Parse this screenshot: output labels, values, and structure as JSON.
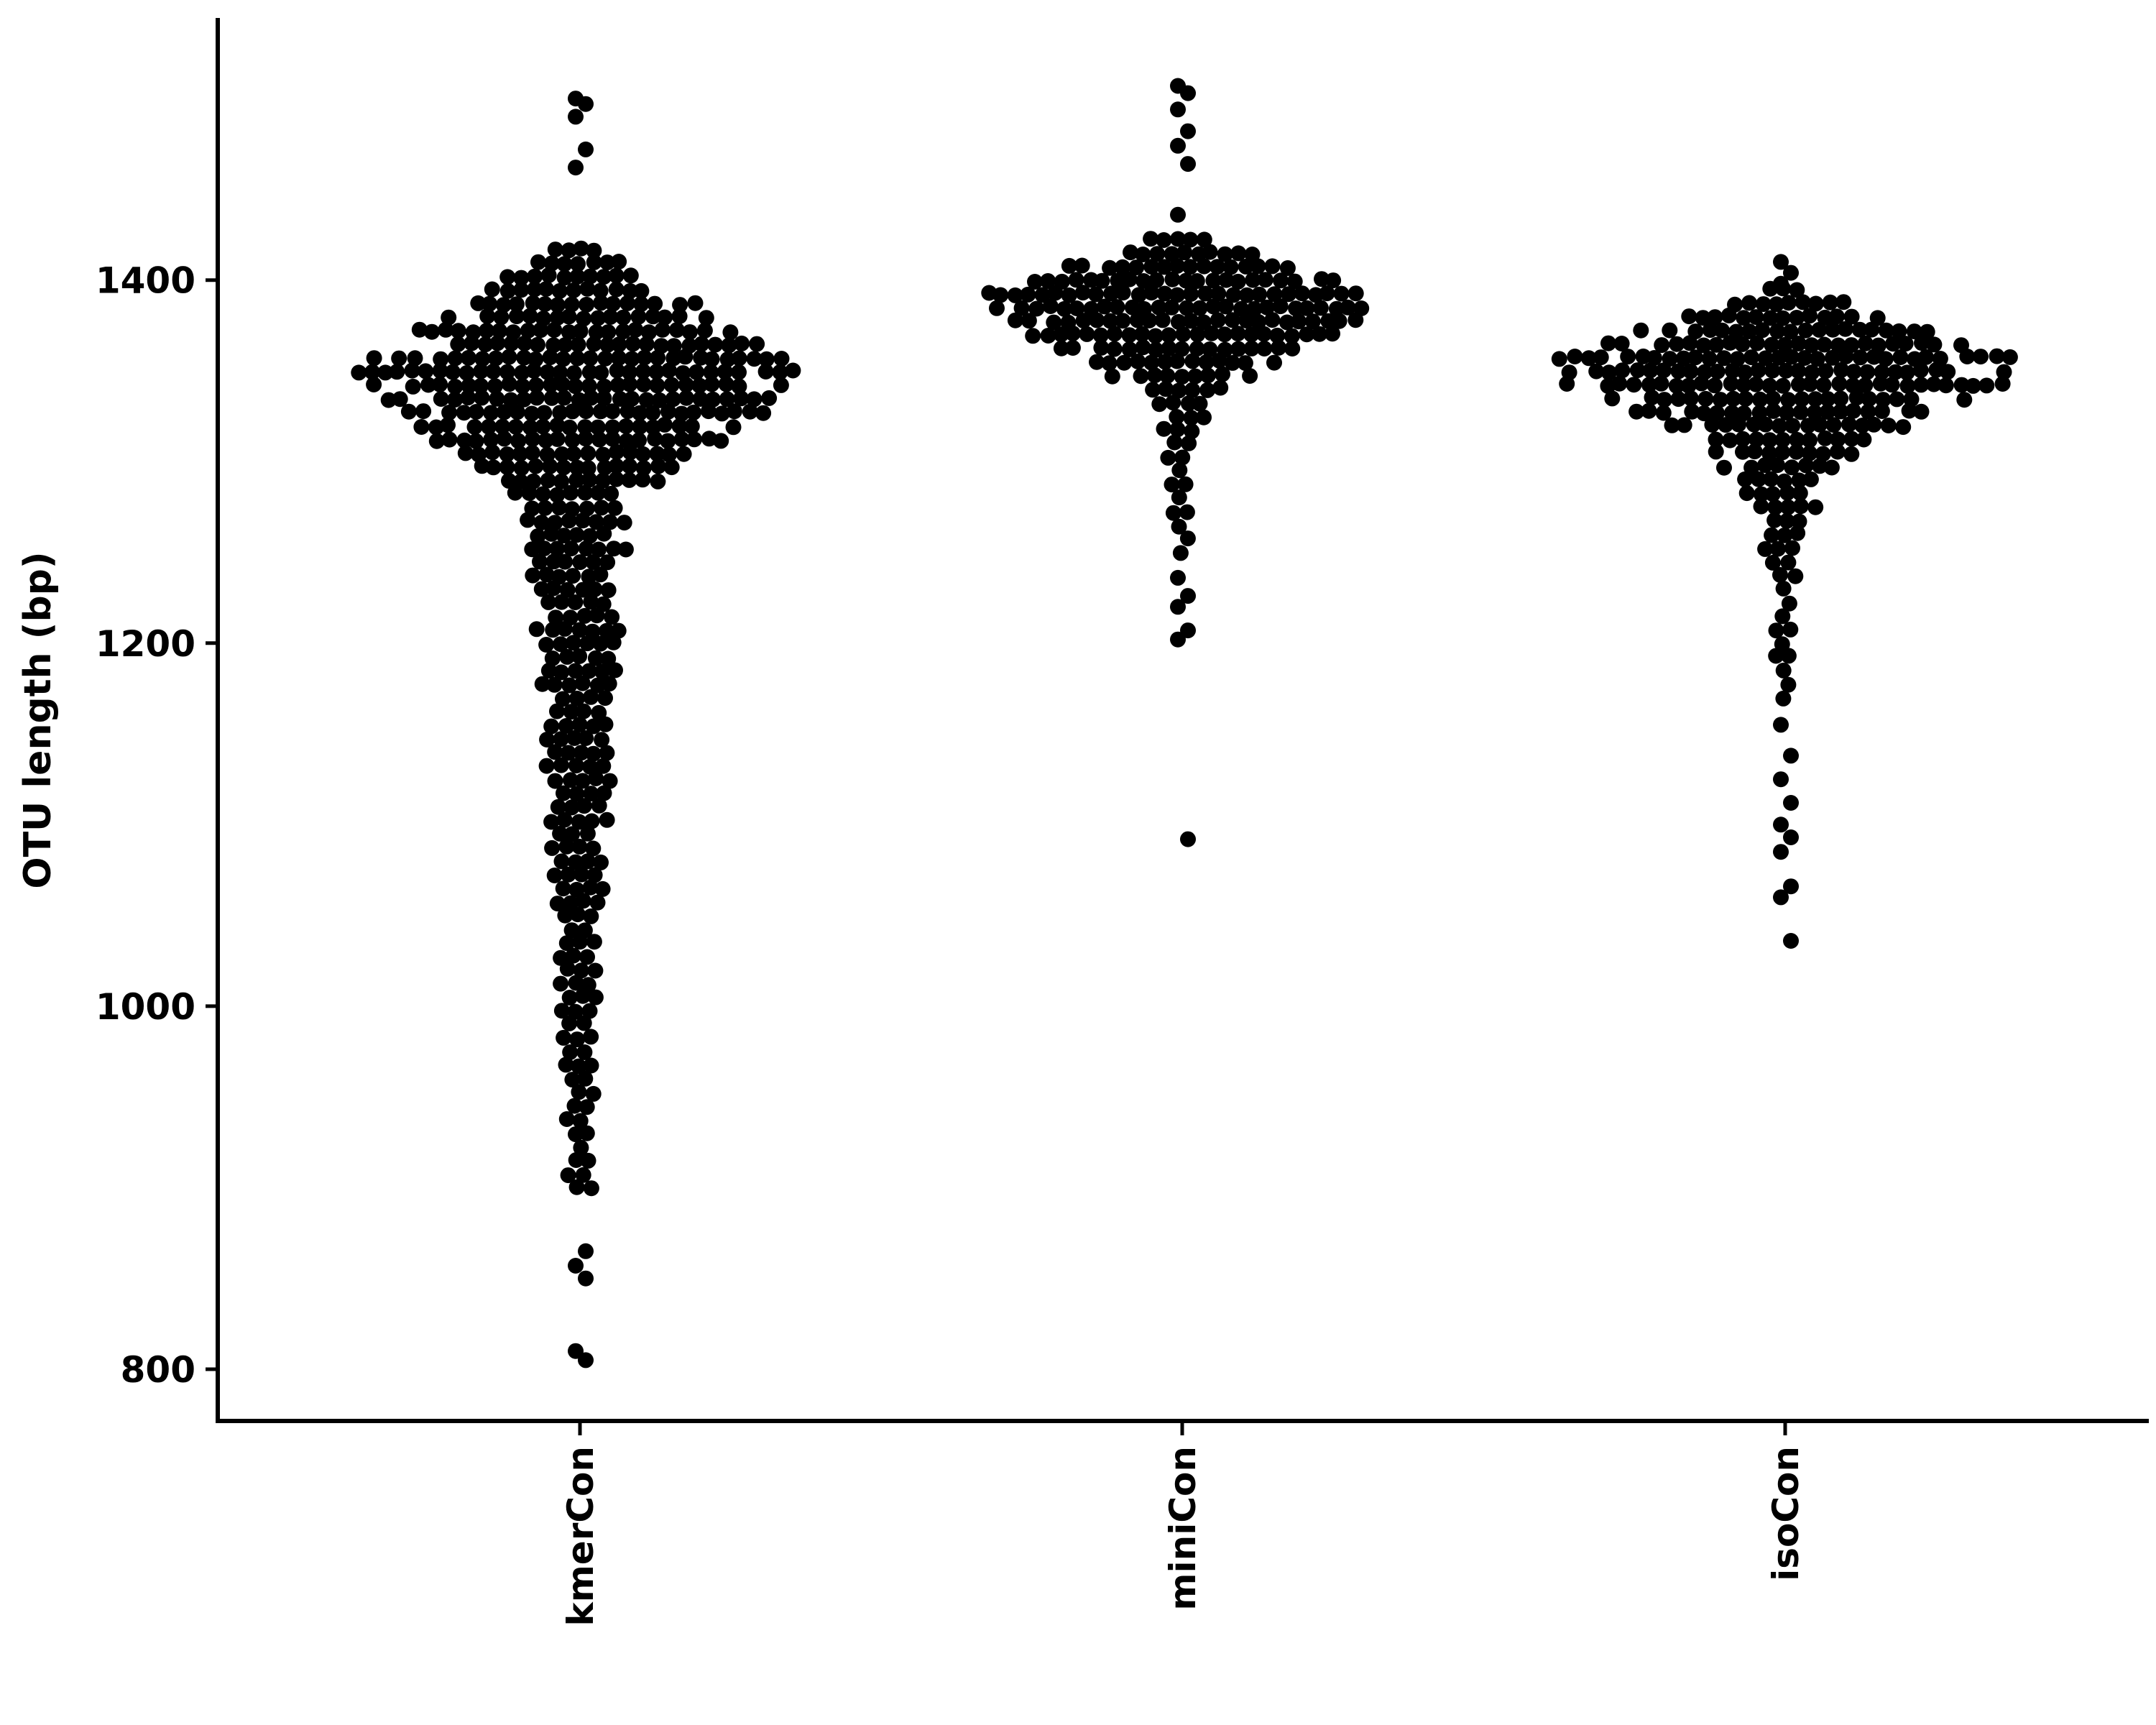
{
  "chart_data": {
    "type": "scatter",
    "subtype": "swarm",
    "title": "",
    "xlabel": "",
    "ylabel": "OTU length (bp)",
    "ylim": [
      740,
      1530
    ],
    "yticks": [
      800,
      1000,
      1200,
      1400
    ],
    "categories": [
      "kmerCon",
      "miniCon",
      "isoCon"
    ],
    "marker_color": "#000000",
    "grid": false,
    "legend": "none",
    "series": [
      {
        "category": "kmerCon",
        "min": 805,
        "max": 1500,
        "peak_length": 1345,
        "outliers_high": [
          1462,
          1472,
          1490,
          1497,
          1500
        ],
        "outliers_low": [
          805,
          810,
          850,
          857,
          865
        ]
      },
      {
        "category": "miniCon",
        "min": 1092,
        "max": 1507,
        "peak_length": 1383,
        "outliers_high": [
          1436,
          1464,
          1474,
          1482,
          1494,
          1503,
          1507
        ],
        "outliers_low": [
          1092,
          1202,
          1207,
          1220,
          1226,
          1236
        ]
      },
      {
        "category": "isoCon",
        "min": 1036,
        "max": 1410,
        "peak_length": 1347,
        "outliers_high": [
          1398,
          1404,
          1410
        ],
        "outliers_low": [
          1036,
          1060,
          1066,
          1085,
          1093,
          1100,
          1112,
          1125,
          1138,
          1155
        ]
      }
    ]
  }
}
